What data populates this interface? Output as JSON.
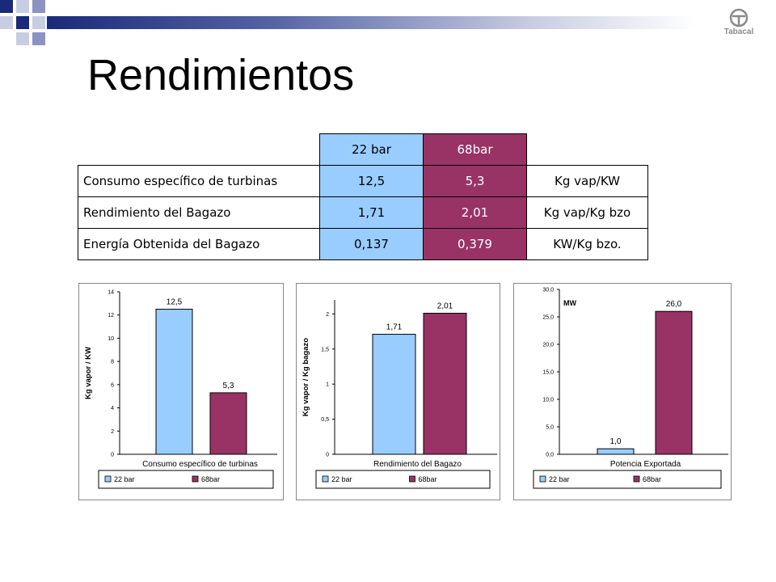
{
  "slide": {
    "title": "Rendimientos",
    "logo_text": "Tabacal",
    "colors": {
      "accent_dark": "#1a2a7a",
      "series_22": "#99ccff",
      "series_68": "#993366"
    }
  },
  "table": {
    "headers": [
      "22 bar",
      "68bar"
    ],
    "rows": [
      {
        "label": "Consumo específico de turbinas",
        "v22": "12,5",
        "v68": "5,3",
        "unit": "Kg vap/KW"
      },
      {
        "label": "Rendimiento del Bagazo",
        "v22": "1,71",
        "v68": "2,01",
        "unit": "Kg vap/Kg bzo"
      },
      {
        "label": "Energía Obtenida del Bagazo",
        "v22": "0,137",
        "v68": "0,379",
        "unit": "KW/Kg bzo."
      }
    ]
  },
  "chart_data": [
    {
      "type": "bar",
      "categories": [
        "22 bar",
        "68bar"
      ],
      "values": [
        12.5,
        5.3
      ],
      "data_labels": [
        "12,5",
        "5,3"
      ],
      "title": "",
      "xlabel": "Consumo específico de turbinas",
      "ylabel": "Kg vapor / KW",
      "ylim": [
        0,
        14
      ],
      "yticks": [
        0,
        2,
        4,
        6,
        8,
        10,
        12,
        14
      ],
      "ytick_labels": [
        "0",
        "2",
        "4",
        "6",
        "8",
        "10",
        "12",
        "14"
      ],
      "legend": [
        "22 bar",
        "68bar"
      ],
      "legend_position": "bottom",
      "annotation": ""
    },
    {
      "type": "bar",
      "categories": [
        "22 bar",
        "68bar"
      ],
      "values": [
        1.71,
        2.01
      ],
      "data_labels": [
        "1,71",
        "2,01"
      ],
      "title": "",
      "xlabel": "Rendimiento del Bagazo",
      "ylabel": "Kg vapor / Kg bagazo",
      "ylim": [
        0,
        2.2
      ],
      "yticks": [
        0,
        0.5,
        1,
        1.5,
        2
      ],
      "ytick_labels": [
        "0",
        "0,5",
        "1",
        "1,5",
        "2"
      ],
      "legend": [
        "22 bar",
        "68bar"
      ],
      "legend_position": "bottom",
      "annotation": ""
    },
    {
      "type": "bar",
      "categories": [
        "22 bar",
        "68bar"
      ],
      "values": [
        1.0,
        26.0
      ],
      "data_labels": [
        "1,0",
        "26,0"
      ],
      "title": "",
      "xlabel": "Potencia Exportada",
      "ylabel": "",
      "ylim": [
        0,
        30
      ],
      "yticks": [
        0,
        5,
        10,
        15,
        20,
        25,
        30
      ],
      "ytick_labels": [
        "0,0",
        "5,0",
        "10,0",
        "15,0",
        "20,0",
        "25,0",
        "30,0"
      ],
      "legend": [
        "22 bar",
        "68bar"
      ],
      "legend_position": "bottom",
      "annotation": "MW"
    }
  ]
}
